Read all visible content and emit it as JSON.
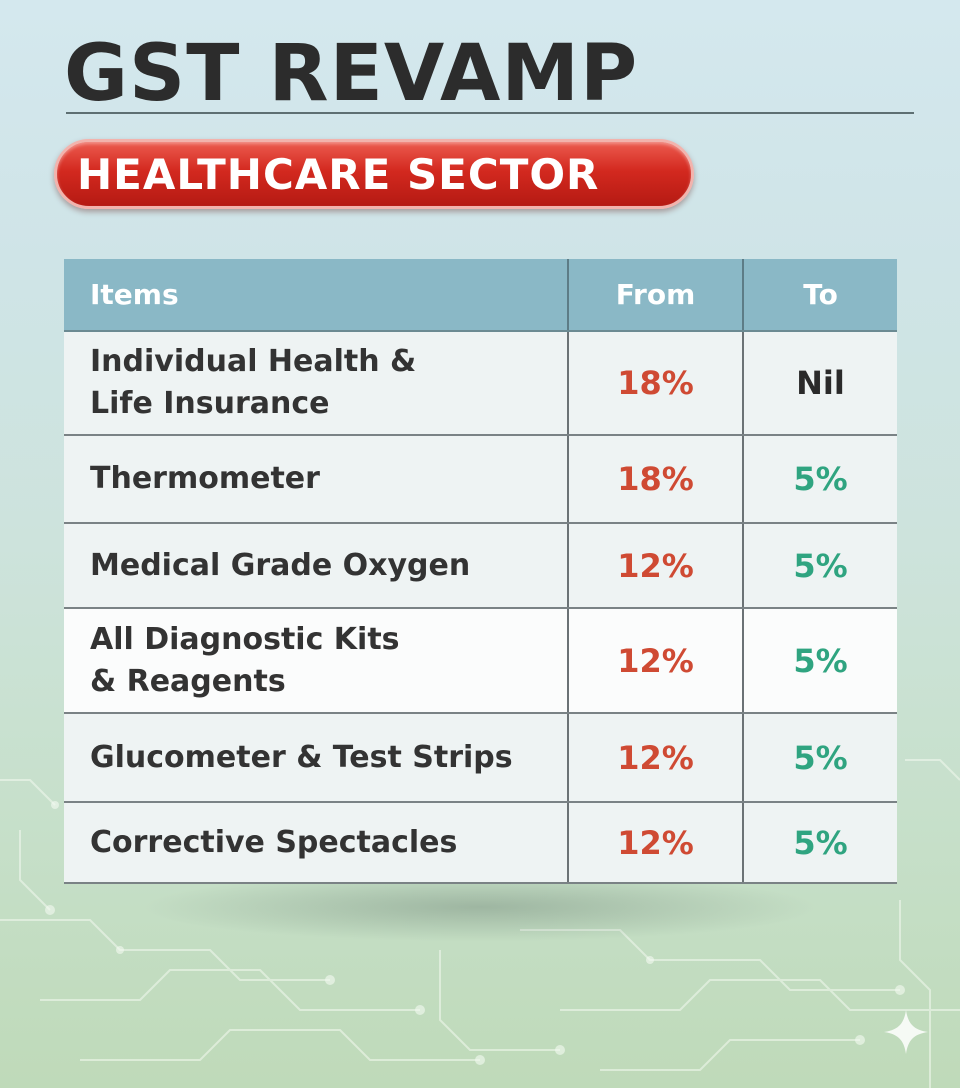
{
  "header": {
    "title": "GST REVAMP",
    "subtitle": "HEALTHCARE SECTOR"
  },
  "table": {
    "columns": [
      "Items",
      "From",
      "To"
    ],
    "rows": [
      {
        "item_line1": "Individual Health &",
        "item_line2": "Life Insurance",
        "from": "18%",
        "to": "Nil"
      },
      {
        "item_line1": "Thermometer",
        "item_line2": "",
        "from": "18%",
        "to": "5%"
      },
      {
        "item_line1": "Medical Grade Oxygen",
        "item_line2": "",
        "from": "12%",
        "to": "5%"
      },
      {
        "item_line1": "All Diagnostic Kits",
        "item_line2": "& Reagents",
        "from": "12%",
        "to": "5%"
      },
      {
        "item_line1": "Glucometer & Test Strips",
        "item_line2": "",
        "from": "12%",
        "to": "5%"
      },
      {
        "item_line1": "Corrective Spectacles",
        "item_line2": "",
        "from": "12%",
        "to": "5%"
      }
    ]
  },
  "colors": {
    "banner_red": "#d3291f",
    "header_teal": "#8ab8c6",
    "from_orange": "#cf4a33",
    "to_green": "#2fa480",
    "title_dark": "#2c2c2c"
  },
  "icons": {
    "background": "circuit-board-pattern",
    "corner": "sparkle-icon"
  }
}
